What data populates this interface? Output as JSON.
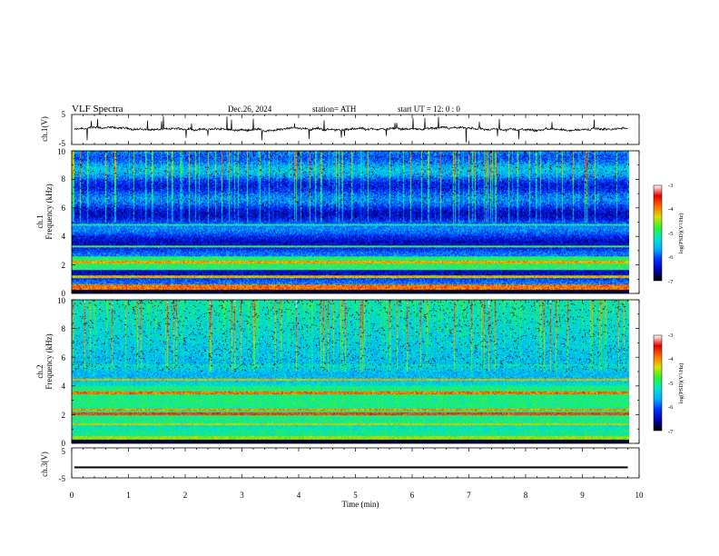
{
  "header": {
    "title": "VLF  Spectra",
    "date": "Dec.26, 2024",
    "station": "station= ATH",
    "start_ut": "start  UT  =   12: 0  : 0"
  },
  "chart_data": [
    {
      "type": "line",
      "panel": "ch1-waveform",
      "ylabel": "ch.1(V)",
      "xlim": [
        0,
        10
      ],
      "ylim": [
        -5,
        5
      ],
      "yticks": [
        "5",
        "-5"
      ],
      "baseline_value": 0,
      "data_end_min": 9.8
    },
    {
      "type": "heatmap",
      "panel": "ch1-spectrogram",
      "ylabel_channel": "ch.1",
      "ylabel": "Frequency  (kHz)",
      "xlim": [
        0,
        10
      ],
      "ylim": [
        0,
        10
      ],
      "yticks": [
        "0",
        "2",
        "4",
        "6",
        "8",
        "10"
      ],
      "data_end_min": 9.8,
      "colorbar": {
        "label": "log(PSD)(V²/Hz)",
        "range": [
          -7,
          -3
        ],
        "ticks": [
          "-3",
          "-4",
          "-5",
          "-6",
          "-7"
        ]
      }
    },
    {
      "type": "heatmap",
      "panel": "ch2-spectrogram",
      "ylabel_channel": "ch.2",
      "ylabel": "Frequency  (kHz)",
      "xlim": [
        0,
        10
      ],
      "ylim": [
        0,
        10
      ],
      "yticks": [
        "0",
        "2",
        "4",
        "6",
        "8",
        "10"
      ],
      "data_end_min": 9.8,
      "colorbar": {
        "label": "log(PSD)(V²/Hz)",
        "range": [
          -7,
          -3
        ],
        "ticks": [
          "-3",
          "-4",
          "-5",
          "-6",
          "-7"
        ]
      }
    },
    {
      "type": "line",
      "panel": "ch3-waveform",
      "ylabel": "ch.3(V)",
      "xlabel": "Time  (min)",
      "xlim": [
        0,
        10
      ],
      "ylim": [
        -5,
        5
      ],
      "yticks": [
        "5",
        "-5"
      ],
      "xticks": [
        "0",
        "1",
        "2",
        "3",
        "4",
        "5",
        "6",
        "7",
        "8",
        "9",
        "10"
      ],
      "baseline_value": -1.5,
      "data_end_min": 9.8
    }
  ],
  "colors": {
    "colormap": [
      "#000000",
      "#0000b0",
      "#0030ff",
      "#00b0ff",
      "#00e8c8",
      "#30f030",
      "#d8e000",
      "#ff7000",
      "#e00000",
      "#ffffff"
    ],
    "line": "#000000",
    "frame": "#000000"
  }
}
